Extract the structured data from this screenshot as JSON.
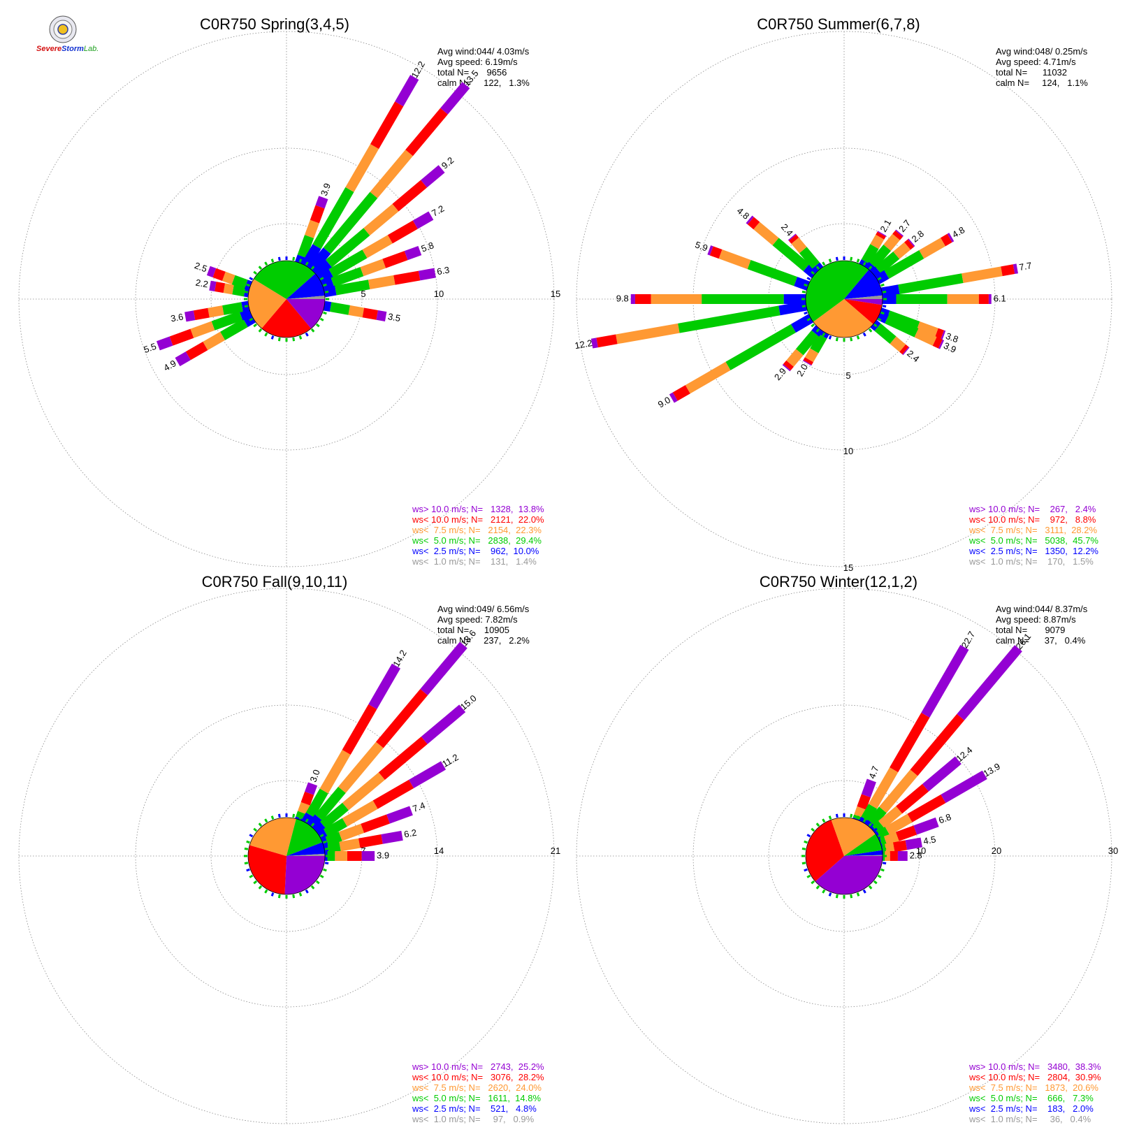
{
  "logo": {
    "part1": "Severe",
    "part2": "Storm",
    "part3": "Lab."
  },
  "colors": {
    "purple": "#9400d3",
    "red": "#ff0000",
    "orange": "#ff9933",
    "green": "#00cc00",
    "blue": "#0000ff",
    "gray": "#999999",
    "grid": "#888888"
  },
  "chart_data": [
    {
      "type": "wind-rose",
      "title": "C0R750 Spring(3,4,5)",
      "stats": [
        "Avg wind:044/ 4.03m/s",
        "Avg speed: 6.19m/s",
        "total N=       9656",
        "calm N=     122,   1.3%"
      ],
      "ring_labels": [
        "5",
        "10",
        "15"
      ],
      "ring_max": 15,
      "label_side": "east",
      "legend": [
        {
          "text": "ws> 10.0 m/s; N=   1328,  13.8%",
          "color": "purple"
        },
        {
          "text": "ws< 10.0 m/s; N=   2121,  22.0%",
          "color": "red"
        },
        {
          "text": "ws<  7.5 m/s; N=   2154,  22.3%",
          "color": "orange"
        },
        {
          "text": "ws<  5.0 m/s; N=   2838,  29.4%",
          "color": "green"
        },
        {
          "text": "ws<  2.5 m/s; N=    962,  10.0%",
          "color": "blue"
        },
        {
          "text": "ws<  1.0 m/s; N=    131,   1.4%",
          "color": "gray"
        }
      ],
      "pie": [
        13.8,
        22.0,
        22.3,
        29.4,
        10.0,
        1.4
      ],
      "bars": [
        {
          "dir": 20,
          "total": 3.9,
          "labeled": true
        },
        {
          "dir": 30,
          "total": 12.2,
          "labeled": true
        },
        {
          "dir": 40,
          "total": 13.5,
          "labeled": true
        },
        {
          "dir": 50,
          "total": 9.2,
          "labeled": true
        },
        {
          "dir": 60,
          "total": 7.2,
          "labeled": true
        },
        {
          "dir": 70,
          "total": 5.8,
          "labeled": true
        },
        {
          "dir": 80,
          "total": 6.3,
          "labeled": true
        },
        {
          "dir": 100,
          "total": 3.5,
          "labeled": true
        },
        {
          "dir": 240,
          "total": 4.9,
          "labeled": true
        },
        {
          "dir": 250,
          "total": 5.5,
          "labeled": true
        },
        {
          "dir": 260,
          "total": 3.6,
          "labeled": true
        },
        {
          "dir": 280,
          "total": 2.2,
          "labeled": true
        },
        {
          "dir": 290,
          "total": 2.5,
          "labeled": true
        }
      ]
    },
    {
      "type": "wind-rose",
      "title": "C0R750 Summer(6,7,8)",
      "stats": [
        "Avg wind:048/ 0.25m/s",
        "Avg speed: 4.71m/s",
        "total N=      11032",
        "calm N=     124,   1.1%"
      ],
      "ring_labels": [
        "5",
        "10",
        "15"
      ],
      "ring_max": 15,
      "label_side": "south",
      "legend": [
        {
          "text": "ws> 10.0 m/s; N=    267,   2.4%",
          "color": "purple"
        },
        {
          "text": "ws< 10.0 m/s; N=    972,   8.8%",
          "color": "red"
        },
        {
          "text": "ws<  7.5 m/s; N=   3111,  28.2%",
          "color": "orange"
        },
        {
          "text": "ws<  5.0 m/s; N=   5038,  45.7%",
          "color": "green"
        },
        {
          "text": "ws<  2.5 m/s; N=   1350,  12.2%",
          "color": "blue"
        },
        {
          "text": "ws<  1.0 m/s; N=    170,   1.5%",
          "color": "gray"
        }
      ],
      "pie": [
        2.4,
        8.8,
        28.2,
        45.7,
        12.2,
        1.5
      ],
      "bars": [
        {
          "dir": 30,
          "total": 2.1,
          "labeled": true
        },
        {
          "dir": 40,
          "total": 2.7,
          "labeled": true
        },
        {
          "dir": 50,
          "total": 2.8,
          "labeled": true
        },
        {
          "dir": 60,
          "total": 4.8,
          "labeled": true
        },
        {
          "dir": 80,
          "total": 7.7,
          "labeled": true
        },
        {
          "dir": 90,
          "total": 6.1,
          "labeled": true
        },
        {
          "dir": 110,
          "total": 3.8,
          "labeled": true
        },
        {
          "dir": 115,
          "total": 3.9,
          "labeled": true
        },
        {
          "dir": 130,
          "total": 2.4,
          "labeled": true
        },
        {
          "dir": 210,
          "total": 2.0,
          "labeled": true
        },
        {
          "dir": 220,
          "total": 2.9,
          "labeled": true
        },
        {
          "dir": 240,
          "total": 9.0,
          "labeled": true
        },
        {
          "dir": 260,
          "total": 12.2,
          "labeled": true
        },
        {
          "dir": 270,
          "total": 9.8,
          "labeled": true
        },
        {
          "dir": 290,
          "total": 5.9,
          "labeled": true
        },
        {
          "dir": 310,
          "total": 4.8,
          "labeled": true
        },
        {
          "dir": 320,
          "total": 2.4,
          "labeled": true
        }
      ]
    },
    {
      "type": "wind-rose",
      "title": "C0R750 Fall(9,10,11)",
      "stats": [
        "Avg wind:049/ 6.56m/s",
        "Avg speed: 7.82m/s",
        "total N=      10905",
        "calm N=     237,   2.2%"
      ],
      "ring_labels": [
        "7",
        "14",
        "21"
      ],
      "ring_max": 21,
      "label_side": "east",
      "legend": [
        {
          "text": "ws> 10.0 m/s; N=   2743,  25.2%",
          "color": "purple"
        },
        {
          "text": "ws< 10.0 m/s; N=   3076,  28.2%",
          "color": "red"
        },
        {
          "text": "ws<  7.5 m/s; N=   2620,  24.0%",
          "color": "orange"
        },
        {
          "text": "ws<  5.0 m/s; N=   1611,  14.8%",
          "color": "green"
        },
        {
          "text": "ws<  2.5 m/s; N=    521,   4.8%",
          "color": "blue"
        },
        {
          "text": "ws<  1.0 m/s; N=     97,   0.9%",
          "color": "gray"
        }
      ],
      "pie": [
        25.2,
        28.2,
        24.0,
        14.8,
        4.8,
        0.9
      ],
      "bars": [
        {
          "dir": 20,
          "total": 3.0,
          "labeled": true
        },
        {
          "dir": 30,
          "total": 14.2,
          "labeled": true
        },
        {
          "dir": 40,
          "total": 18.6,
          "labeled": true
        },
        {
          "dir": 50,
          "total": 15.0,
          "labeled": true
        },
        {
          "dir": 60,
          "total": 11.2,
          "labeled": true
        },
        {
          "dir": 70,
          "total": 7.4,
          "labeled": true
        },
        {
          "dir": 80,
          "total": 6.2,
          "labeled": true
        },
        {
          "dir": 90,
          "total": 3.9,
          "labeled": true
        }
      ]
    },
    {
      "type": "wind-rose",
      "title": "C0R750 Winter(12,1,2)",
      "stats": [
        "Avg wind:044/ 8.37m/s",
        "Avg speed: 8.87m/s",
        "total N=       9079",
        "calm N=      37,   0.4%"
      ],
      "ring_labels": [
        "10",
        "20",
        "30"
      ],
      "ring_max": 30,
      "label_side": "east",
      "legend": [
        {
          "text": "ws> 10.0 m/s; N=   3480,  38.3%",
          "color": "purple"
        },
        {
          "text": "ws< 10.0 m/s; N=   2804,  30.9%",
          "color": "red"
        },
        {
          "text": "ws<  7.5 m/s; N=   1873,  20.6%",
          "color": "orange"
        },
        {
          "text": "ws<  5.0 m/s; N=    666,   7.3%",
          "color": "green"
        },
        {
          "text": "ws<  2.5 m/s; N=    183,   2.0%",
          "color": "blue"
        },
        {
          "text": "ws<  1.0 m/s; N=     36,   0.4%",
          "color": "gray"
        }
      ],
      "pie": [
        38.3,
        30.9,
        20.6,
        7.3,
        2.0,
        0.4
      ],
      "bars": [
        {
          "dir": 20,
          "total": 4.7,
          "labeled": true
        },
        {
          "dir": 30,
          "total": 22.7,
          "labeled": true
        },
        {
          "dir": 40,
          "total": 26.1,
          "labeled": true
        },
        {
          "dir": 50,
          "total": 12.4,
          "labeled": true
        },
        {
          "dir": 60,
          "total": 13.9,
          "labeled": true
        },
        {
          "dir": 70,
          "total": 6.8,
          "labeled": true
        },
        {
          "dir": 80,
          "total": 4.5,
          "labeled": true
        },
        {
          "dir": 90,
          "total": 2.8,
          "labeled": true
        }
      ]
    }
  ]
}
